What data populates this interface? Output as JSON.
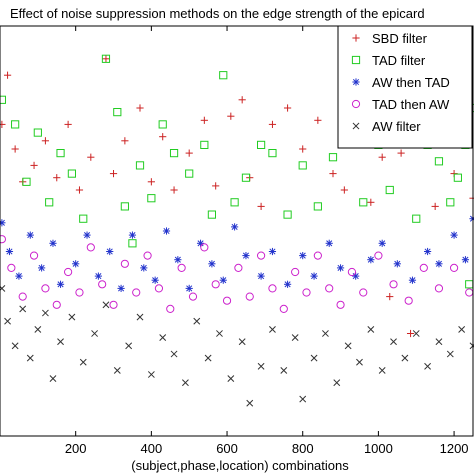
{
  "chart_data": {
    "type": "scatter",
    "title": "Effect of noise suppression methods on the edge strength of the epicard",
    "xlabel": "(subject,phase,location) combinations",
    "ylabel": "",
    "xlim": [
      0,
      1250
    ],
    "ylim": [
      0,
      10
    ],
    "xticks": [
      200,
      400,
      600,
      800,
      1000,
      1200
    ],
    "grid": false,
    "legend_position": "top-right",
    "series": [
      {
        "name": "SBD filter",
        "marker": "plus",
        "color": "#cc2222",
        "points": [
          [
            5,
            7.6
          ],
          [
            20,
            8.8
          ],
          [
            40,
            7.0
          ],
          [
            60,
            6.2
          ],
          [
            90,
            6.6
          ],
          [
            120,
            7.2
          ],
          [
            150,
            6.3
          ],
          [
            180,
            7.6
          ],
          [
            210,
            6.0
          ],
          [
            240,
            6.8
          ],
          [
            280,
            9.2
          ],
          [
            300,
            6.4
          ],
          [
            330,
            7.2
          ],
          [
            370,
            8.0
          ],
          [
            400,
            6.2
          ],
          [
            430,
            7.3
          ],
          [
            460,
            6.0
          ],
          [
            500,
            6.9
          ],
          [
            540,
            7.7
          ],
          [
            570,
            6.1
          ],
          [
            610,
            7.8
          ],
          [
            640,
            8.2
          ],
          [
            660,
            6.3
          ],
          [
            690,
            5.6
          ],
          [
            720,
            7.6
          ],
          [
            760,
            8.0
          ],
          [
            800,
            7.0
          ],
          [
            840,
            7.7
          ],
          [
            880,
            6.4
          ],
          [
            910,
            6.0
          ],
          [
            940,
            7.2
          ],
          [
            980,
            5.7
          ],
          [
            1010,
            6.8
          ],
          [
            1060,
            6.9
          ],
          [
            1100,
            7.4
          ],
          [
            1150,
            5.6
          ],
          [
            1200,
            6.4
          ],
          [
            1230,
            7.2
          ],
          [
            1250,
            5.8
          ],
          [
            1240,
            8.6
          ],
          [
            1030,
            3.4
          ],
          [
            1085,
            2.5
          ]
        ]
      },
      {
        "name": "TAD filter",
        "marker": "square",
        "color": "#22cc22",
        "points": [
          [
            5,
            8.2
          ],
          [
            40,
            7.6
          ],
          [
            70,
            6.2
          ],
          [
            100,
            7.4
          ],
          [
            130,
            5.7
          ],
          [
            160,
            6.9
          ],
          [
            190,
            6.4
          ],
          [
            220,
            5.3
          ],
          [
            280,
            9.2
          ],
          [
            310,
            7.9
          ],
          [
            330,
            5.6
          ],
          [
            350,
            4.7
          ],
          [
            370,
            6.6
          ],
          [
            400,
            5.8
          ],
          [
            430,
            7.6
          ],
          [
            460,
            6.9
          ],
          [
            500,
            6.4
          ],
          [
            540,
            7.1
          ],
          [
            560,
            5.4
          ],
          [
            590,
            8.8
          ],
          [
            620,
            5.7
          ],
          [
            650,
            6.3
          ],
          [
            690,
            7.1
          ],
          [
            720,
            6.9
          ],
          [
            760,
            5.4
          ],
          [
            800,
            6.6
          ],
          [
            840,
            5.6
          ],
          [
            880,
            6.8
          ],
          [
            920,
            7.3
          ],
          [
            960,
            5.7
          ],
          [
            1000,
            7.1
          ],
          [
            1030,
            6.0
          ],
          [
            1060,
            7.6
          ],
          [
            1100,
            5.3
          ],
          [
            1130,
            7.1
          ],
          [
            1160,
            6.7
          ],
          [
            1190,
            5.7
          ],
          [
            1210,
            6.3
          ],
          [
            1230,
            7.1
          ],
          [
            1250,
            8.0
          ],
          [
            1240,
            3.7
          ]
        ]
      },
      {
        "name": "AW then TAD",
        "marker": "asterisk",
        "color": "#2233cc",
        "points": [
          [
            5,
            5.2
          ],
          [
            25,
            4.5
          ],
          [
            50,
            3.9
          ],
          [
            80,
            4.9
          ],
          [
            110,
            4.1
          ],
          [
            140,
            4.7
          ],
          [
            160,
            3.7
          ],
          [
            200,
            4.2
          ],
          [
            230,
            4.9
          ],
          [
            260,
            3.9
          ],
          [
            290,
            4.5
          ],
          [
            320,
            3.6
          ],
          [
            350,
            4.9
          ],
          [
            380,
            4.1
          ],
          [
            410,
            3.8
          ],
          [
            440,
            5.0
          ],
          [
            470,
            4.3
          ],
          [
            500,
            3.6
          ],
          [
            530,
            4.7
          ],
          [
            560,
            4.2
          ],
          [
            590,
            3.8
          ],
          [
            620,
            5.1
          ],
          [
            650,
            4.4
          ],
          [
            690,
            3.9
          ],
          [
            720,
            4.5
          ],
          [
            760,
            3.7
          ],
          [
            800,
            4.4
          ],
          [
            830,
            3.9
          ],
          [
            870,
            4.7
          ],
          [
            900,
            4.1
          ],
          [
            940,
            3.9
          ],
          [
            980,
            4.3
          ],
          [
            1010,
            4.7
          ],
          [
            1050,
            4.2
          ],
          [
            1090,
            3.8
          ],
          [
            1130,
            4.5
          ],
          [
            1160,
            4.2
          ],
          [
            1200,
            4.9
          ],
          [
            1230,
            4.3
          ],
          [
            1250,
            5.3
          ]
        ]
      },
      {
        "name": "TAD then AW",
        "marker": "circle",
        "color": "#cc22cc",
        "points": [
          [
            5,
            4.8
          ],
          [
            30,
            4.1
          ],
          [
            60,
            3.4
          ],
          [
            90,
            4.4
          ],
          [
            120,
            3.6
          ],
          [
            150,
            3.2
          ],
          [
            180,
            4.0
          ],
          [
            210,
            3.5
          ],
          [
            240,
            4.6
          ],
          [
            270,
            3.7
          ],
          [
            300,
            3.2
          ],
          [
            330,
            4.2
          ],
          [
            360,
            3.5
          ],
          [
            390,
            4.4
          ],
          [
            420,
            3.6
          ],
          [
            450,
            3.1
          ],
          [
            480,
            4.1
          ],
          [
            510,
            3.4
          ],
          [
            540,
            4.6
          ],
          [
            570,
            3.7
          ],
          [
            600,
            3.3
          ],
          [
            630,
            4.1
          ],
          [
            660,
            3.4
          ],
          [
            690,
            4.4
          ],
          [
            720,
            3.6
          ],
          [
            750,
            3.1
          ],
          [
            780,
            4.0
          ],
          [
            810,
            3.5
          ],
          [
            840,
            4.4
          ],
          [
            870,
            3.6
          ],
          [
            900,
            3.2
          ],
          [
            930,
            4.0
          ],
          [
            960,
            3.5
          ],
          [
            1000,
            4.4
          ],
          [
            1040,
            3.7
          ],
          [
            1080,
            3.3
          ],
          [
            1120,
            4.1
          ],
          [
            1160,
            3.6
          ],
          [
            1200,
            4.1
          ],
          [
            1240,
            3.5
          ]
        ]
      },
      {
        "name": "AW filter",
        "marker": "x",
        "color": "#333333",
        "points": [
          [
            5,
            3.6
          ],
          [
            20,
            2.8
          ],
          [
            40,
            2.2
          ],
          [
            60,
            3.1
          ],
          [
            80,
            1.9
          ],
          [
            100,
            2.6
          ],
          [
            120,
            3.0
          ],
          [
            140,
            1.4
          ],
          [
            160,
            2.3
          ],
          [
            190,
            2.9
          ],
          [
            220,
            1.8
          ],
          [
            250,
            2.5
          ],
          [
            280,
            3.2
          ],
          [
            310,
            1.6
          ],
          [
            340,
            2.2
          ],
          [
            370,
            2.9
          ],
          [
            400,
            1.5
          ],
          [
            430,
            2.4
          ],
          [
            460,
            2.0
          ],
          [
            490,
            1.3
          ],
          [
            520,
            2.8
          ],
          [
            550,
            1.9
          ],
          [
            580,
            2.5
          ],
          [
            610,
            1.4
          ],
          [
            640,
            2.3
          ],
          [
            660,
            0.8
          ],
          [
            690,
            1.7
          ],
          [
            720,
            2.6
          ],
          [
            750,
            1.6
          ],
          [
            780,
            2.4
          ],
          [
            800,
            0.9
          ],
          [
            830,
            1.9
          ],
          [
            860,
            2.5
          ],
          [
            890,
            1.3
          ],
          [
            920,
            2.2
          ],
          [
            950,
            1.8
          ],
          [
            980,
            2.6
          ],
          [
            1010,
            1.6
          ],
          [
            1040,
            2.3
          ],
          [
            1070,
            1.9
          ],
          [
            1100,
            2.5
          ],
          [
            1130,
            1.7
          ],
          [
            1160,
            2.3
          ],
          [
            1190,
            2.0
          ],
          [
            1220,
            2.6
          ],
          [
            1250,
            2.2
          ]
        ]
      }
    ]
  }
}
